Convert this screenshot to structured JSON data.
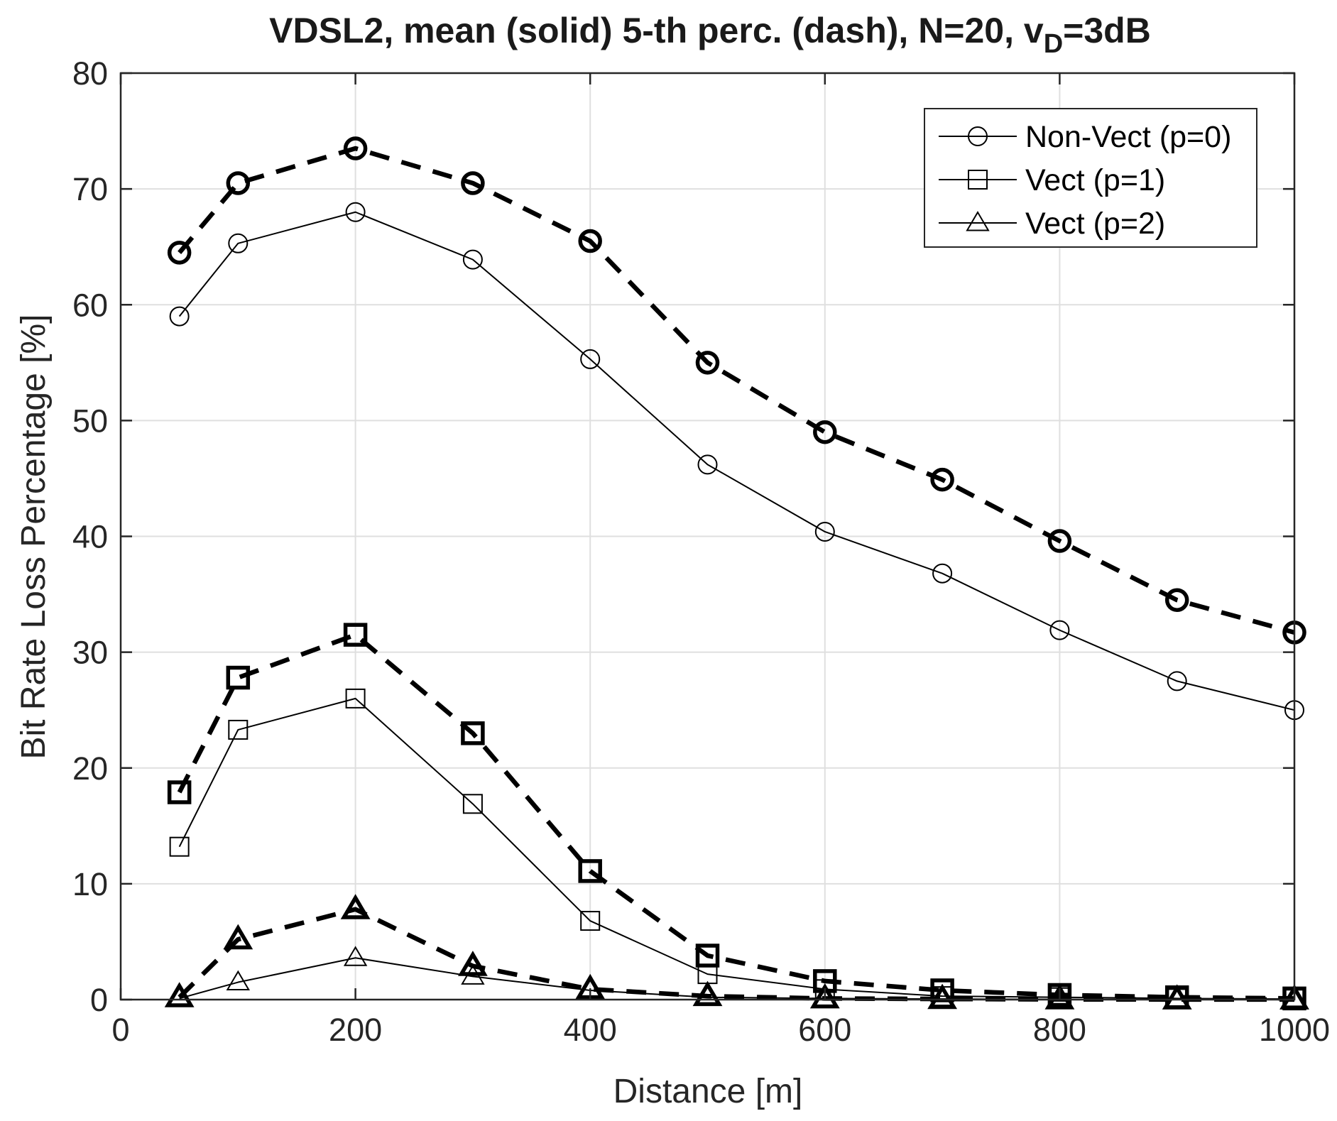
{
  "chart_data": {
    "type": "line",
    "title_main": "VDSL2, mean (solid) 5-th perc. (dash), N=20, v",
    "title_sub": "D",
    "title_tail": "=3dB",
    "xlabel": "Distance [m]",
    "ylabel": "Bit Rate Loss Percentage [%]",
    "xlim": [
      0,
      1000
    ],
    "ylim": [
      0,
      80
    ],
    "xticks": [
      0,
      200,
      400,
      600,
      800,
      1000
    ],
    "yticks": [
      0,
      10,
      20,
      30,
      40,
      50,
      60,
      70,
      80
    ],
    "grid": true,
    "legend_position": "top-right",
    "x": [
      50,
      100,
      200,
      300,
      400,
      500,
      600,
      700,
      800,
      900,
      1000
    ],
    "series": [
      {
        "name": "Non-Vect (p=0)",
        "marker": "circle",
        "stat": "mean",
        "style": "solid",
        "values": [
          59.0,
          65.3,
          68.0,
          63.9,
          55.3,
          46.2,
          40.4,
          36.8,
          31.9,
          27.5,
          25.0
        ]
      },
      {
        "name": "Vect (p=1)",
        "marker": "square",
        "stat": "mean",
        "style": "solid",
        "values": [
          13.2,
          23.3,
          26.0,
          16.9,
          6.8,
          2.2,
          0.9,
          0.3,
          0.2,
          0.1,
          0.05
        ]
      },
      {
        "name": "Vect (p=2)",
        "marker": "triangle",
        "stat": "mean",
        "style": "solid",
        "values": [
          0.1,
          1.5,
          3.6,
          2.0,
          0.8,
          0.2,
          0.1,
          0.05,
          0.02,
          0.01,
          0.01
        ]
      },
      {
        "name": "Non-Vect (p=0)",
        "marker": "circle",
        "stat": "5th percentile",
        "style": "dash",
        "values": [
          64.5,
          70.5,
          73.5,
          70.5,
          65.5,
          55.0,
          49.0,
          44.9,
          39.6,
          34.5,
          31.7
        ]
      },
      {
        "name": "Vect (p=1)",
        "marker": "square",
        "stat": "5th percentile",
        "style": "dash",
        "values": [
          17.9,
          27.8,
          31.5,
          23.0,
          11.1,
          3.8,
          1.6,
          0.8,
          0.4,
          0.2,
          0.1
        ]
      },
      {
        "name": "Vect (p=2)",
        "marker": "triangle",
        "stat": "5th percentile",
        "style": "dash",
        "values": [
          0.2,
          5.2,
          7.8,
          2.9,
          0.9,
          0.3,
          0.1,
          0.05,
          0.02,
          0.01,
          0.01
        ]
      }
    ],
    "legend": [
      {
        "label": "Non-Vect (p=0)",
        "marker": "circle"
      },
      {
        "label": "Vect (p=1)",
        "marker": "square"
      },
      {
        "label": "Vect (p=2)",
        "marker": "triangle"
      }
    ]
  }
}
